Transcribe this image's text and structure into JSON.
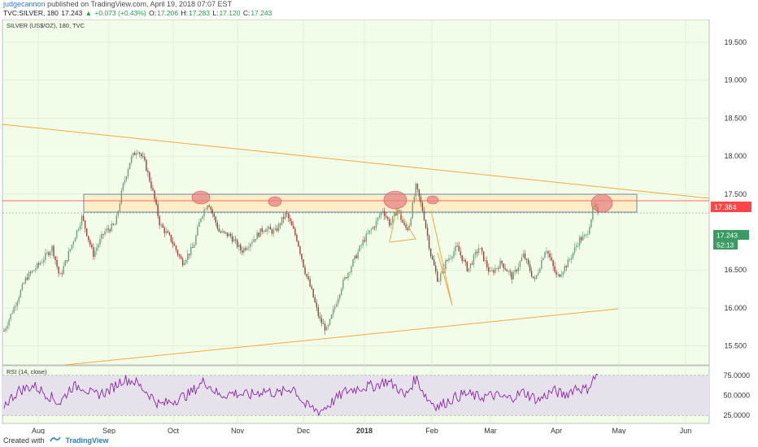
{
  "header": {
    "author": "judgecannon",
    "published": "published on TradingView.com, April 19, 2018 07:07 EST",
    "symbol_line": "TVC:SILVER, 180",
    "last": "17.243",
    "change": "+0.073 (+0.43%)",
    "o_label": "O:",
    "o": "17.206",
    "h_label": "H:",
    "h": "17.283",
    "l_label": "L:",
    "l": "17.120",
    "c_label": "C:",
    "c": "17.243"
  },
  "chart_data": {
    "type": "candlestick",
    "symbol_label": "SILVER (US$/OZ), 180, TVC",
    "x_ticks": [
      "Aug",
      "Sep",
      "Oct",
      "Nov",
      "Dec",
      "2018",
      "Feb",
      "Mar",
      "Apr",
      "May",
      "Jun"
    ],
    "y_ticks": [
      "19.500",
      "19.000",
      "18.500",
      "18.000",
      "17.500",
      "16.500",
      "16.000",
      "15.500"
    ],
    "ylim": [
      15.25,
      19.8
    ],
    "price_path": [
      [
        0,
        15.7
      ],
      [
        3,
        16.05
      ],
      [
        6,
        16.4
      ],
      [
        9,
        16.55
      ],
      [
        13,
        16.8
      ],
      [
        15,
        16.4
      ],
      [
        18,
        16.8
      ],
      [
        21,
        17.2
      ],
      [
        24,
        16.7
      ],
      [
        27,
        17.0
      ],
      [
        30,
        17.1
      ],
      [
        32,
        17.6
      ],
      [
        34,
        17.95
      ],
      [
        36,
        18.1
      ],
      [
        38,
        17.9
      ],
      [
        40,
        17.55
      ],
      [
        42,
        17.1
      ],
      [
        45,
        16.9
      ],
      [
        48,
        16.6
      ],
      [
        51,
        16.8
      ],
      [
        53,
        17.2
      ],
      [
        55,
        17.4
      ],
      [
        58,
        17.0
      ],
      [
        61,
        16.95
      ],
      [
        64,
        16.75
      ],
      [
        67,
        16.9
      ],
      [
        70,
        17.05
      ],
      [
        73,
        17.0
      ],
      [
        76,
        17.25
      ],
      [
        79,
        16.9
      ],
      [
        81,
        16.5
      ],
      [
        83,
        16.2
      ],
      [
        85,
        15.85
      ],
      [
        87,
        15.7
      ],
      [
        89,
        16.0
      ],
      [
        91,
        16.3
      ],
      [
        94,
        16.6
      ],
      [
        97,
        16.9
      ],
      [
        100,
        17.1
      ],
      [
        102,
        17.3
      ],
      [
        104,
        17.1
      ],
      [
        106,
        17.3
      ],
      [
        108,
        17.05
      ],
      [
        109,
        17.05
      ],
      [
        111,
        17.6
      ],
      [
        113,
        17.25
      ],
      [
        115,
        16.7
      ],
      [
        117,
        16.35
      ],
      [
        119,
        16.6
      ],
      [
        122,
        16.8
      ],
      [
        125,
        16.5
      ],
      [
        128,
        16.8
      ],
      [
        131,
        16.45
      ],
      [
        134,
        16.6
      ],
      [
        137,
        16.4
      ],
      [
        140,
        16.7
      ],
      [
        143,
        16.35
      ],
      [
        146,
        16.8
      ],
      [
        149,
        16.4
      ],
      [
        152,
        16.6
      ],
      [
        155,
        16.9
      ],
      [
        157,
        16.95
      ],
      [
        159,
        17.35
      ],
      [
        160,
        17.24
      ]
    ],
    "current_price": "17.384",
    "last_price": "17.243",
    "countdown": "52:13",
    "rsi": {
      "label": "RSI (14, close)",
      "y_ticks": [
        "75.0000",
        "50.0000",
        "25.0000"
      ],
      "ylim": [
        15,
        87
      ],
      "path": [
        [
          0,
          38
        ],
        [
          4,
          56
        ],
        [
          8,
          62
        ],
        [
          12,
          50
        ],
        [
          15,
          40
        ],
        [
          18,
          60
        ],
        [
          21,
          62
        ],
        [
          24,
          50
        ],
        [
          28,
          55
        ],
        [
          32,
          70
        ],
        [
          35,
          68
        ],
        [
          39,
          52
        ],
        [
          42,
          38
        ],
        [
          46,
          44
        ],
        [
          50,
          52
        ],
        [
          54,
          68
        ],
        [
          58,
          50
        ],
        [
          62,
          53
        ],
        [
          66,
          50
        ],
        [
          70,
          56
        ],
        [
          74,
          52
        ],
        [
          78,
          60
        ],
        [
          81,
          38
        ],
        [
          85,
          30
        ],
        [
          88,
          40
        ],
        [
          92,
          55
        ],
        [
          96,
          60
        ],
        [
          100,
          62
        ],
        [
          103,
          68
        ],
        [
          106,
          60
        ],
        [
          108,
          48
        ],
        [
          111,
          72
        ],
        [
          114,
          46
        ],
        [
          117,
          36
        ],
        [
          120,
          44
        ],
        [
          124,
          52
        ],
        [
          128,
          48
        ],
        [
          132,
          50
        ],
        [
          136,
          46
        ],
        [
          140,
          54
        ],
        [
          144,
          44
        ],
        [
          148,
          56
        ],
        [
          151,
          50
        ],
        [
          154,
          60
        ],
        [
          157,
          57
        ],
        [
          160,
          78
        ]
      ]
    }
  },
  "footer": {
    "created": "Created with",
    "brand": "TradingView"
  },
  "colors": {
    "plot_bg": "#f2fde9",
    "up": "#6b9f7c",
    "down": "#9a3d3a",
    "price_line": "#ff3d3d",
    "price_tag": "#ff4545",
    "last_tag": "#3c9b63",
    "box_stroke": "#4a6fa5",
    "box_fill": "#fdeec8",
    "trend": "#f5a93f",
    "ellipse": "#e58080",
    "rsi": "#8e24aa",
    "rsi_band": "#e5e2ec"
  }
}
